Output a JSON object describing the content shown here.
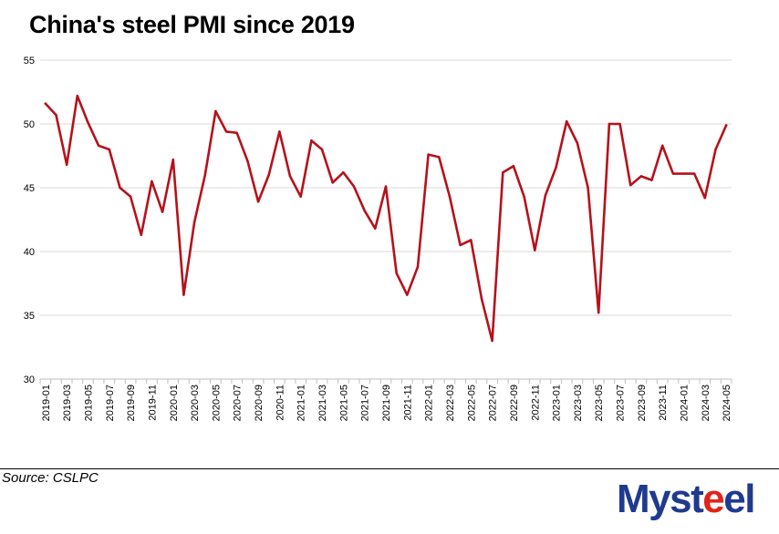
{
  "title": "China's steel PMI since 2019",
  "source": "Source: CSLPC",
  "logo": {
    "text": "Mysteel",
    "color_primary": "#1f3a8f",
    "color_accent": "#e2231a"
  },
  "line_color": "#b5121b",
  "chart_data": {
    "type": "line",
    "title": "China's steel PMI since 2019",
    "xlabel": "",
    "ylabel": "",
    "ylim": [
      30,
      55
    ],
    "yticks": [
      30,
      35,
      40,
      45,
      50,
      55
    ],
    "grid": true,
    "x": [
      "2019-01",
      "2019-02",
      "2019-03",
      "2019-04",
      "2019-05",
      "2019-06",
      "2019-07",
      "2019-08",
      "2019-09",
      "2019-10",
      "2019-11",
      "2019-12",
      "2020-01",
      "2020-02",
      "2020-03",
      "2020-04",
      "2020-05",
      "2020-06",
      "2020-07",
      "2020-08",
      "2020-09",
      "2020-10",
      "2020-11",
      "2020-12",
      "2021-01",
      "2021-02",
      "2021-03",
      "2021-04",
      "2021-05",
      "2021-06",
      "2021-07",
      "2021-08",
      "2021-09",
      "2021-10",
      "2021-11",
      "2021-12",
      "2022-01",
      "2022-02",
      "2022-03",
      "2022-04",
      "2022-05",
      "2022-06",
      "2022-07",
      "2022-08",
      "2022-09",
      "2022-10",
      "2022-11",
      "2022-12",
      "2023-01",
      "2023-02",
      "2023-03",
      "2023-04",
      "2023-05",
      "2023-06",
      "2023-07",
      "2023-08",
      "2023-09",
      "2023-10",
      "2023-11",
      "2023-12",
      "2024-01",
      "2024-02",
      "2024-03",
      "2024-04",
      "2024-05"
    ],
    "xtick_labels": [
      "2019-01",
      "2019-03",
      "2019-05",
      "2019-07",
      "2019-09",
      "2019-11",
      "2020-01",
      "2020-03",
      "2020-05",
      "2020-07",
      "2020-09",
      "2020-11",
      "2021-01",
      "2021-03",
      "2021-05",
      "2021-07",
      "2021-09",
      "2021-11",
      "2022-01",
      "2022-03",
      "2022-05",
      "2022-07",
      "2022-09",
      "2022-11",
      "2023-01",
      "2023-03",
      "2023-05",
      "2023-07",
      "2023-09",
      "2023-11",
      "2024-01",
      "2024-03",
      "2024-05"
    ],
    "series": [
      {
        "values": [
          51.6,
          50.7,
          46.8,
          52.2,
          50.1,
          48.3,
          48.0,
          45.0,
          44.3,
          41.3,
          45.5,
          43.1,
          47.2,
          36.6,
          42.3,
          46.0,
          51.0,
          49.4,
          49.3,
          47.1,
          43.9,
          46.0,
          49.4,
          45.9,
          44.3,
          48.7,
          48.0,
          45.4,
          46.2,
          45.1,
          43.2,
          41.8,
          45.1,
          38.3,
          36.6,
          38.8,
          47.6,
          47.4,
          44.3,
          40.5,
          40.9,
          36.3,
          33.0,
          46.2,
          46.7,
          44.3,
          40.1,
          44.4,
          46.6,
          50.2,
          48.5,
          45.0,
          35.2,
          50.0,
          50.0,
          45.2,
          45.9,
          45.6,
          48.3,
          46.1,
          46.1,
          46.1,
          44.2,
          48.0,
          49.9
        ]
      }
    ]
  }
}
